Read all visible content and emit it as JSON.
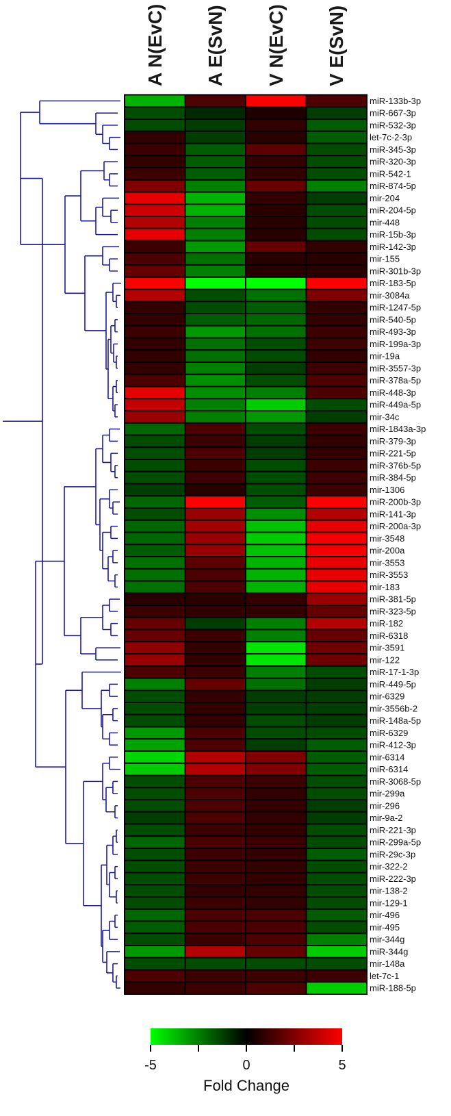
{
  "chart_data": {
    "type": "heatmap",
    "columns": [
      "A N(EvC)",
      "A E(SvN)",
      "V N(EvC)",
      "V E(SvN)"
    ],
    "rows": [
      "miR-133b-3p",
      "miR-667-3p",
      "miR-532-3p",
      "let-7c-2-3p",
      "miR-345-3p",
      "miR-320-3p",
      "miR-542-1",
      "miR-874-5p",
      "mir-204",
      "miR-204-5p",
      "mir-448",
      "miR-15b-3p",
      "miR-142-3p",
      "mir-155",
      "miR-301b-3p",
      "miR-183-5p",
      "mir-3084a",
      "miR-1247-5p",
      "miR-540-5p",
      "miR-493-3p",
      "miR-199a-3p",
      "mir-19a",
      "miR-3557-3p",
      "miR-378a-5p",
      "miR-448-3p",
      "miR-449a-5p",
      "mir-34c",
      "miR-1843a-3p",
      "miR-379-3p",
      "miR-221-5p",
      "miR-376b-5p",
      "miR-384-5p",
      "mir-1306",
      "miR-200b-3p",
      "miR-141-3p",
      "miR-200a-3p",
      "mir-3548",
      "mir-200a",
      "mir-3553",
      "miR-3553",
      "mir-183",
      "miR-381-5p",
      "miR-323-5p",
      "miR-182",
      "miR-6318",
      "mir-3591",
      "mir-122",
      "miR-17-1-3p",
      "miR-449-5p",
      "mir-6329",
      "mir-3556b-2",
      "miR-148a-5p",
      "miR-6329",
      "miR-412-3p",
      "mir-6314",
      "miR-6314",
      "miR-3068-5p",
      "mir-299a",
      "mir-296",
      "mir-9a-2",
      "miR-221-3p",
      "miR-299a-5p",
      "miR-29c-3p",
      "mir-322-2",
      "miR-222-3p",
      "mir-138-2",
      "mir-129-1",
      "mir-496",
      "mir-495",
      "mir-344g",
      "miR-344g",
      "mir-148a",
      "let-7c-1",
      "miR-188-5p"
    ],
    "values": [
      [
        -3.5,
        1.5,
        5,
        1.5
      ],
      [
        -1.5,
        -0.8,
        0.6,
        -1.2
      ],
      [
        -1.5,
        -1.2,
        1,
        -1.8
      ],
      [
        1,
        -1.2,
        0.8,
        -1.8
      ],
      [
        1.2,
        -1.8,
        1.8,
        -1.5
      ],
      [
        1,
        -1.8,
        1,
        -1.5
      ],
      [
        1.2,
        -1.8,
        1,
        -1.5
      ],
      [
        2.5,
        -2.5,
        2,
        -2.5
      ],
      [
        4.5,
        -3.5,
        1,
        -1.2
      ],
      [
        4,
        -3.5,
        0.8,
        -1.5
      ],
      [
        3.5,
        -2.5,
        0.8,
        -1.5
      ],
      [
        4.5,
        -2.5,
        0.8,
        -1.5
      ],
      [
        1.2,
        -3,
        2,
        1
      ],
      [
        1.5,
        -2.2,
        0.8,
        0.8
      ],
      [
        2,
        -2.5,
        0.8,
        0.8
      ],
      [
        5,
        -5,
        -5,
        5
      ],
      [
        3.5,
        -1.5,
        -2.2,
        2.5
      ],
      [
        1,
        -1.5,
        -1.8,
        1
      ],
      [
        1,
        -1.8,
        -2,
        1
      ],
      [
        1.2,
        -3,
        -2.2,
        1.2
      ],
      [
        1,
        -2.2,
        -1.5,
        1.2
      ],
      [
        1,
        -2.2,
        -1.5,
        1
      ],
      [
        1,
        -2.5,
        -1.2,
        1.2
      ],
      [
        1.5,
        -2.8,
        -1.5,
        1.5
      ],
      [
        4.5,
        -2.8,
        -2.5,
        1.5
      ],
      [
        3.8,
        -2.5,
        -4,
        -1.5
      ],
      [
        3,
        -2.5,
        -3,
        -1.2
      ],
      [
        -2,
        1.5,
        -1.5,
        1.2
      ],
      [
        -1.5,
        1.2,
        -1.2,
        1
      ],
      [
        -1.5,
        1.5,
        -1.2,
        1
      ],
      [
        -1.5,
        1.2,
        -1.5,
        1.2
      ],
      [
        -1.5,
        1.2,
        -1.5,
        1.2
      ],
      [
        -1.2,
        0.8,
        -1.5,
        1.2
      ],
      [
        -2,
        5,
        -1.8,
        5
      ],
      [
        -1.5,
        3,
        -2.8,
        3.5
      ],
      [
        -2,
        3.2,
        -3.8,
        4.5
      ],
      [
        -2,
        3,
        -4,
        4.8
      ],
      [
        -1.8,
        3,
        -3.8,
        4.8
      ],
      [
        -2.2,
        1.8,
        -3.5,
        4.5
      ],
      [
        -2.2,
        1.5,
        -3.5,
        4.5
      ],
      [
        -2.2,
        1.5,
        -3.5,
        4.5
      ],
      [
        0.8,
        0.8,
        1,
        3
      ],
      [
        1.2,
        1,
        1,
        2
      ],
      [
        2,
        -1.2,
        -2.5,
        3.5
      ],
      [
        2,
        1.2,
        -2.5,
        2
      ],
      [
        2.8,
        1,
        -4.5,
        2.2
      ],
      [
        3,
        1,
        -4.5,
        2.2
      ],
      [
        1.5,
        1.2,
        -2.5,
        -1.5
      ],
      [
        -2.5,
        2,
        -2.2,
        -1.2
      ],
      [
        -1.5,
        1,
        -1.2,
        -1.2
      ],
      [
        -1.5,
        1,
        -1.2,
        -1.2
      ],
      [
        -1.5,
        1,
        -1.5,
        -1.2
      ],
      [
        -3,
        1.5,
        -1.5,
        -1.5
      ],
      [
        -3.2,
        1.5,
        -1.2,
        -1.8
      ],
      [
        -4.2,
        3.5,
        2.5,
        -1.8
      ],
      [
        -4,
        3.5,
        2.5,
        -1.8
      ],
      [
        -1.5,
        1.5,
        1.2,
        -1.5
      ],
      [
        -1.5,
        1.5,
        1,
        -1.5
      ],
      [
        -1.5,
        1.5,
        1,
        -1.2
      ],
      [
        -1.2,
        1.5,
        1,
        -1.2
      ],
      [
        -1.5,
        1.2,
        1,
        -1.5
      ],
      [
        -2,
        1.5,
        1.2,
        -1.5
      ],
      [
        -1.5,
        1.2,
        1,
        -1.8
      ],
      [
        -1.5,
        1.2,
        1,
        -1.5
      ],
      [
        -1.5,
        1.2,
        1,
        -1.5
      ],
      [
        -1.5,
        1,
        1,
        -1.5
      ],
      [
        -1.5,
        1.2,
        1,
        -1.5
      ],
      [
        -2,
        1.5,
        1.5,
        -1.8
      ],
      [
        -1.8,
        1.5,
        1.5,
        -1.5
      ],
      [
        -1.5,
        1.2,
        1.5,
        -2.5
      ],
      [
        -3,
        3.5,
        2,
        -4
      ],
      [
        -1.5,
        -1.5,
        -1.5,
        -1.5
      ],
      [
        1.5,
        1.2,
        1.2,
        1.2
      ],
      [
        1,
        1.2,
        1.5,
        -4
      ]
    ],
    "colorbar": {
      "min": -5,
      "max": 5,
      "colors": [
        "#00ff00",
        "#000000",
        "#ff0000"
      ],
      "tick_labels": [
        "-5",
        "0",
        "5"
      ],
      "title": "Fold Change"
    },
    "dendrogram": "row clustering tree on left"
  }
}
